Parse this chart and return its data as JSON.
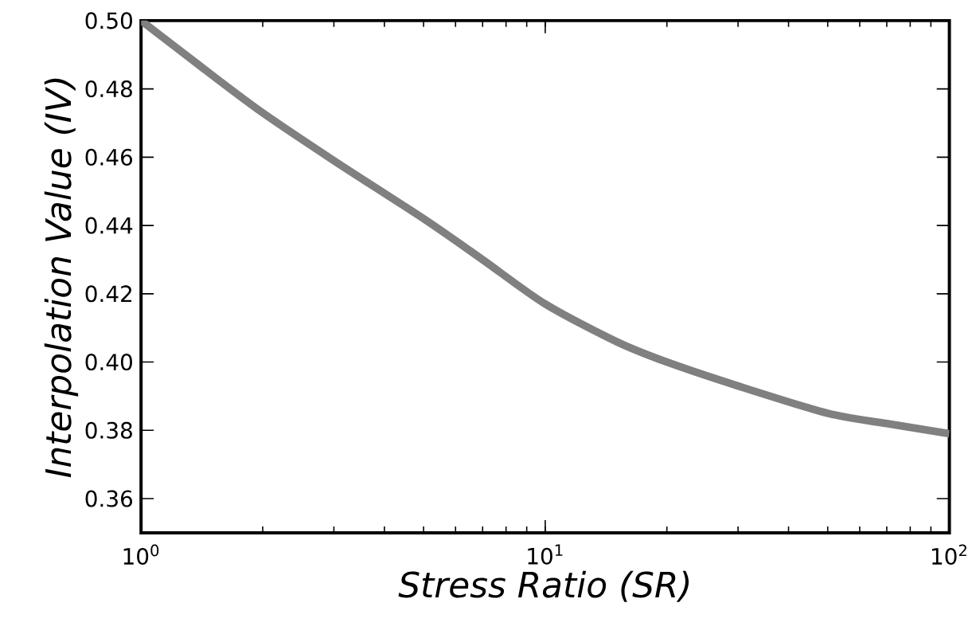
{
  "chart_data": {
    "type": "line",
    "xlabel": "Stress Ratio (SR)",
    "ylabel": "Interpolation Value (IV)",
    "log": "x",
    "x": [
      1,
      1.5,
      2,
      3,
      5,
      7,
      10,
      15,
      20,
      30,
      50,
      70,
      100
    ],
    "series": [
      {
        "color": "#808080",
        "values": [
          0.5,
          0.484,
          0.473,
          0.459,
          0.442,
          0.43,
          0.417,
          0.406,
          0.4,
          0.393,
          0.385,
          0.382,
          0.379
        ]
      }
    ],
    "xlim": [
      1,
      100
    ],
    "ylim": [
      0.35,
      0.5
    ],
    "xticks": [
      {
        "value": 1,
        "label": "10$^{0}$"
      },
      {
        "value": 10,
        "label": "10$^{1}$"
      },
      {
        "value": 100,
        "label": "10$^{2}$"
      }
    ],
    "yticks": [
      0.36,
      0.38,
      {
        "value": 0.4,
        "label": "0.40"
      },
      0.42,
      0.44,
      0.46,
      0.48,
      {
        "value": 0.5,
        "label": "0.50"
      }
    ],
    "line_style": "solid"
  }
}
